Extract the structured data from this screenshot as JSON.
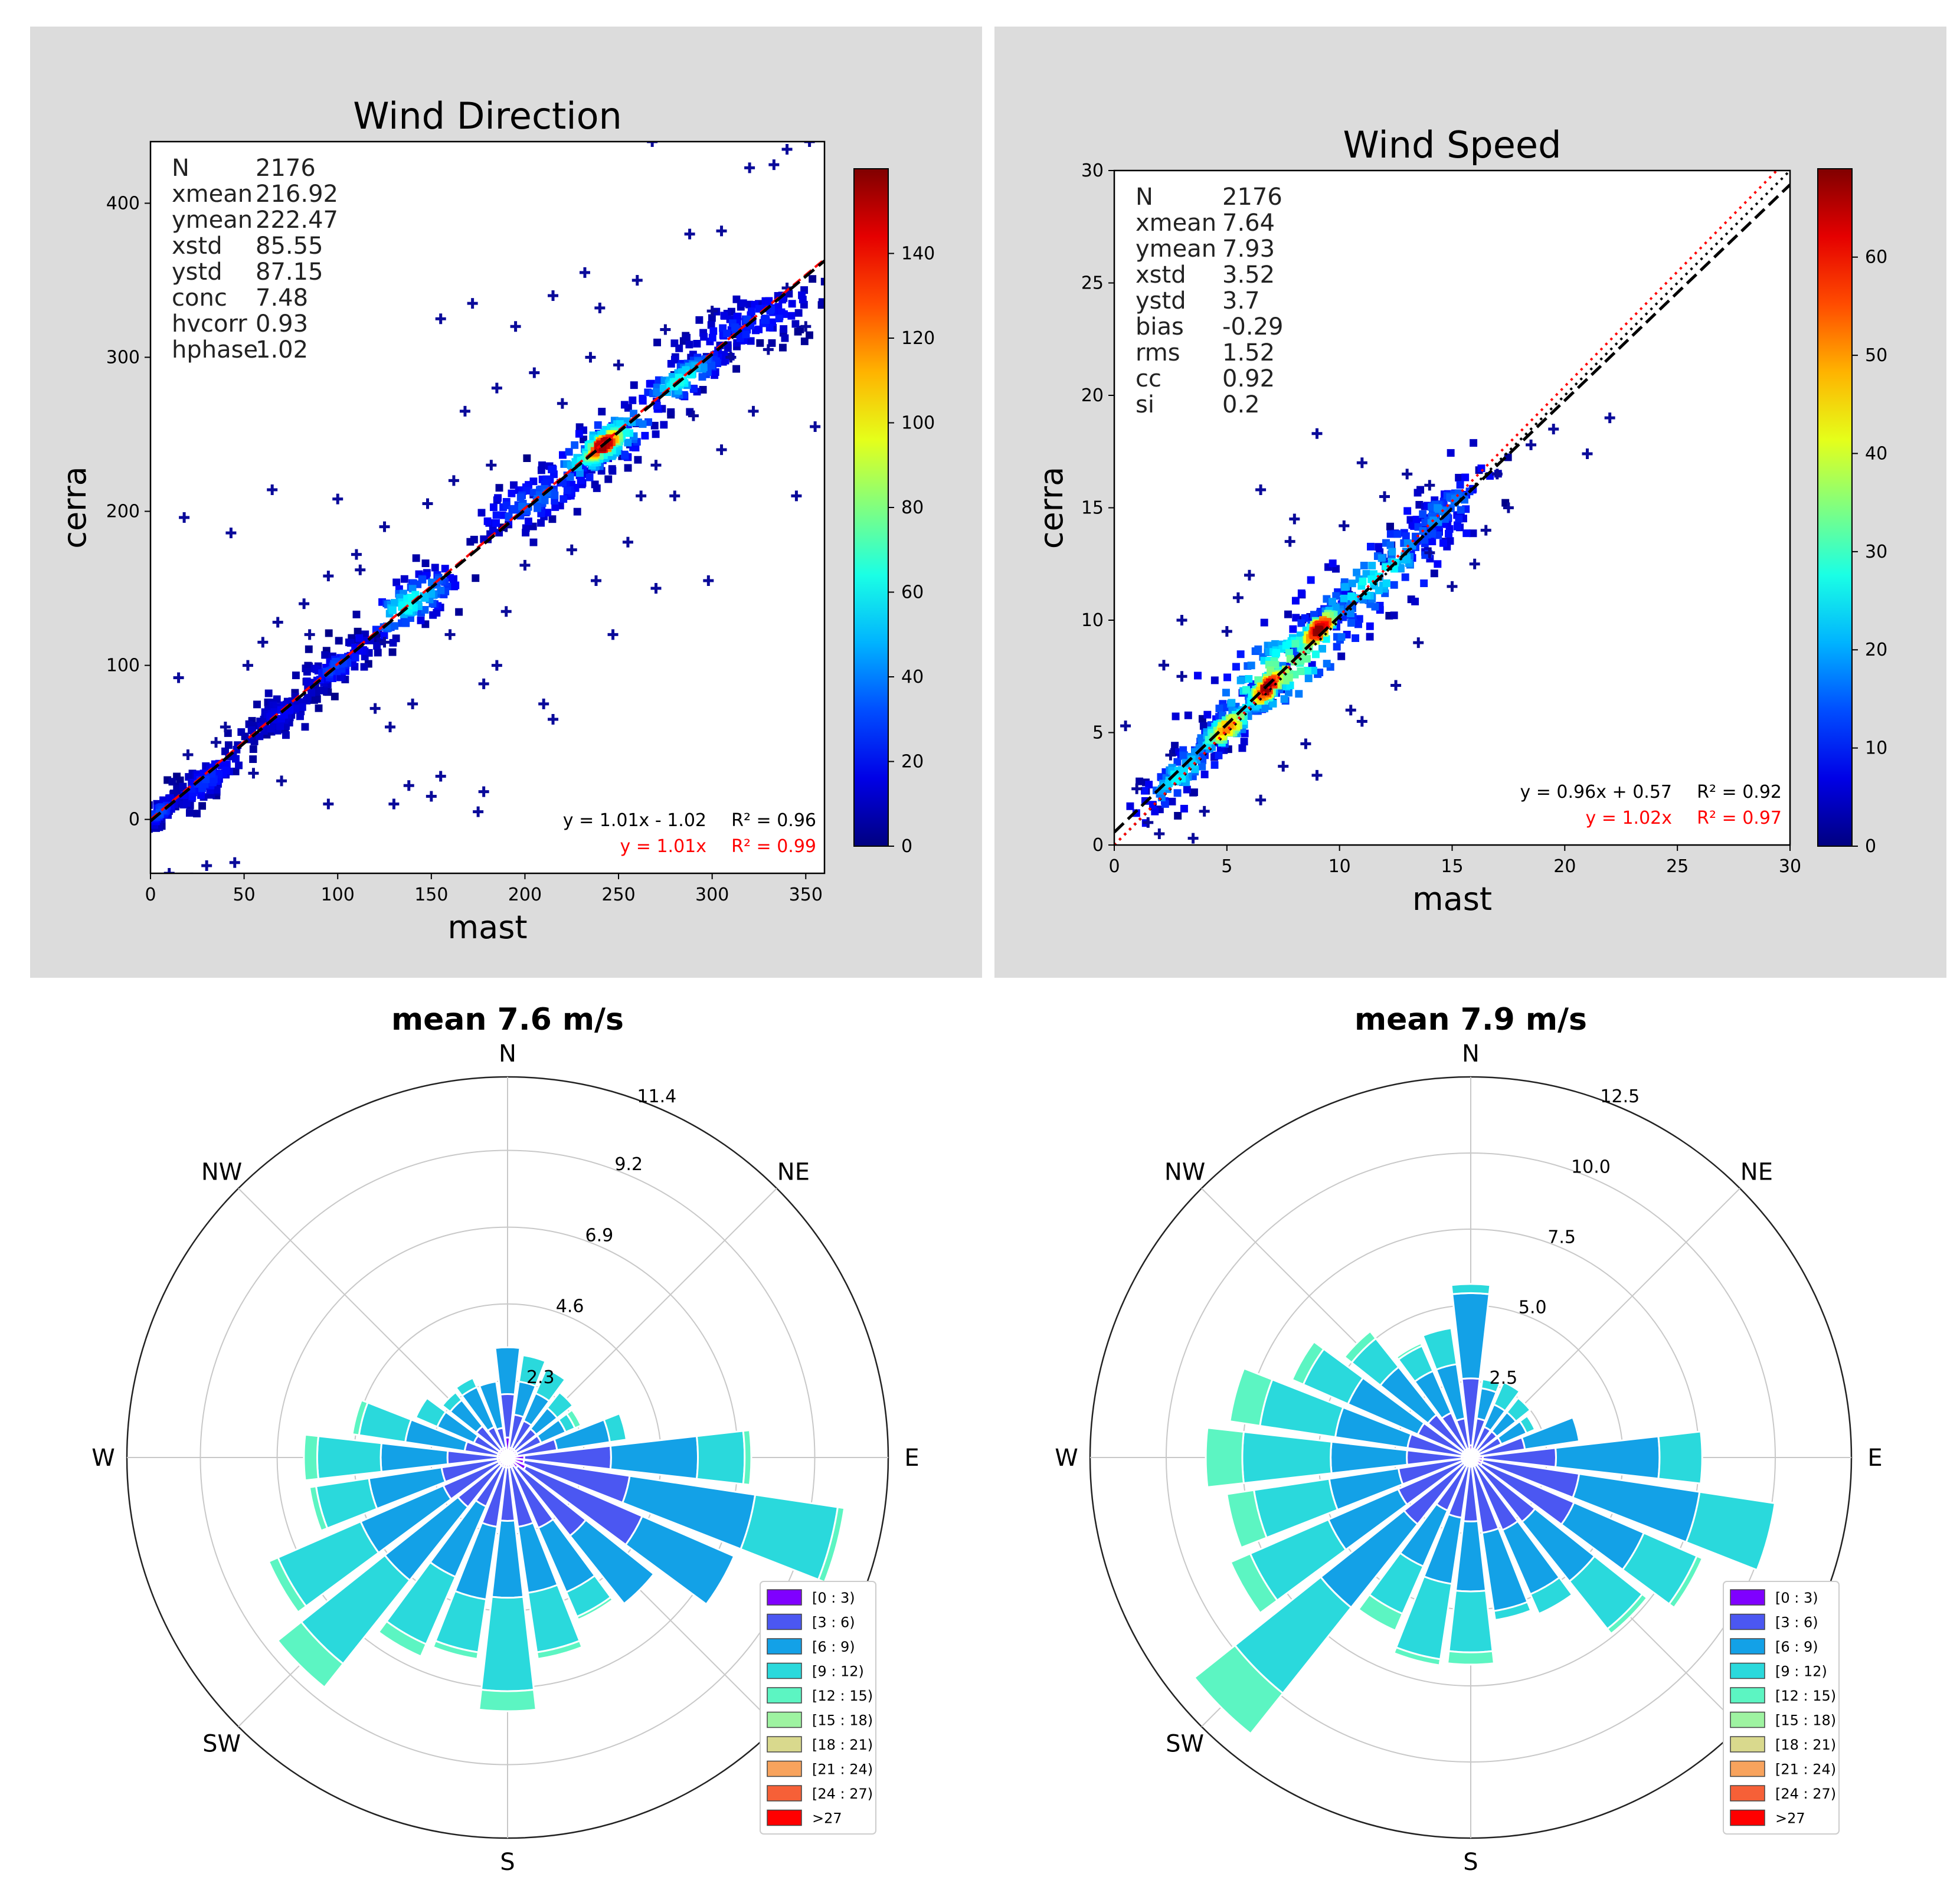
{
  "chart_data": [
    {
      "id": "scatter-direction",
      "type": "scatter",
      "title": "Wind Direction",
      "xlabel": "mast",
      "ylabel": "cerra",
      "xlim": [
        0,
        360
      ],
      "ylim": [
        -35,
        440
      ],
      "xticks": [
        0,
        50,
        100,
        150,
        200,
        250,
        300,
        350
      ],
      "yticks": [
        0,
        100,
        200,
        300,
        400
      ],
      "colorbar": {
        "min": 0,
        "max": 160,
        "ticks": [
          0,
          20,
          40,
          60,
          80,
          100,
          120,
          140
        ]
      },
      "stats": [
        {
          "label": "N",
          "value": "2176"
        },
        {
          "label": "xmean",
          "value": "216.92"
        },
        {
          "label": "ymean",
          "value": "222.47"
        },
        {
          "label": "xstd",
          "value": "85.55"
        },
        {
          "label": "ystd",
          "value": "87.15"
        },
        {
          "label": "conc",
          "value": "7.48"
        },
        {
          "label": "hvcorr",
          "value": "0.93"
        },
        {
          "label": "hphase",
          "value": "1.02"
        }
      ],
      "fit_equation": "y = 1.01x - 1.02",
      "fit_r2": "R² = 0.96",
      "origin_equation": "y = 1.01x",
      "origin_r2": "R² = 0.99",
      "fit_line": {
        "slope": 1.01,
        "intercept": -1.02
      },
      "origin_line": {
        "slope": 1.01,
        "intercept": 0
      },
      "density_clusters": [
        {
          "x": 242,
          "y": 243,
          "sx": 7,
          "sy": 7,
          "d": 155
        },
        {
          "x": 242,
          "y": 243,
          "sx": 16,
          "sy": 15,
          "d": 75
        },
        {
          "x": 283,
          "y": 285,
          "sx": 13,
          "sy": 11,
          "d": 58
        },
        {
          "x": 138,
          "y": 140,
          "sx": 15,
          "sy": 13,
          "d": 58
        },
        {
          "x": 205,
          "y": 207,
          "sx": 20,
          "sy": 14,
          "d": 30
        },
        {
          "x": 320,
          "y": 322,
          "sx": 22,
          "sy": 14,
          "d": 22
        },
        {
          "x": 100,
          "y": 100,
          "sx": 10,
          "sy": 9,
          "d": 25
        },
        {
          "x": 30,
          "y": 25,
          "sx": 10,
          "sy": 10,
          "d": 22
        },
        {
          "x": 70,
          "y": 68,
          "sx": 12,
          "sy": 10,
          "d": 12
        },
        {
          "x": 5,
          "y": 5,
          "sx": 5,
          "sy": 6,
          "d": 25
        }
      ],
      "outliers": [
        [
          18,
          196
        ],
        [
          43,
          186
        ],
        [
          65,
          214
        ],
        [
          100,
          208
        ],
        [
          95,
          158
        ],
        [
          112,
          162
        ],
        [
          70,
          25
        ],
        [
          95,
          10
        ],
        [
          138,
          22
        ],
        [
          155,
          28
        ],
        [
          178,
          18
        ],
        [
          175,
          5
        ],
        [
          150,
          15
        ],
        [
          130,
          10
        ],
        [
          45,
          -28
        ],
        [
          22,
          -38
        ],
        [
          10,
          -35
        ],
        [
          30,
          -30
        ],
        [
          172,
          335
        ],
        [
          155,
          325
        ],
        [
          195,
          320
        ],
        [
          215,
          340
        ],
        [
          232,
          355
        ],
        [
          240,
          332
        ],
        [
          260,
          350
        ],
        [
          268,
          440
        ],
        [
          288,
          380
        ],
        [
          305,
          382
        ],
        [
          320,
          423
        ],
        [
          333,
          425
        ],
        [
          340,
          435
        ],
        [
          352,
          440
        ],
        [
          355,
          255
        ],
        [
          345,
          210
        ],
        [
          322,
          265
        ],
        [
          305,
          240
        ],
        [
          238,
          155
        ],
        [
          247,
          120
        ],
        [
          270,
          150
        ],
        [
          298,
          155
        ],
        [
          210,
          75
        ],
        [
          215,
          65
        ],
        [
          185,
          100
        ],
        [
          178,
          88
        ],
        [
          190,
          135
        ],
        [
          140,
          75
        ],
        [
          120,
          72
        ],
        [
          128,
          60
        ],
        [
          225,
          175
        ],
        [
          255,
          180
        ],
        [
          262,
          210
        ],
        [
          280,
          210
        ],
        [
          220,
          270
        ],
        [
          235,
          300
        ],
        [
          250,
          295
        ],
        [
          205,
          290
        ],
        [
          185,
          280
        ],
        [
          168,
          265
        ],
        [
          182,
          230
        ],
        [
          162,
          220
        ],
        [
          148,
          205
        ],
        [
          125,
          190
        ],
        [
          110,
          172
        ],
        [
          60,
          115
        ],
        [
          52,
          100
        ],
        [
          68,
          128
        ],
        [
          82,
          140
        ],
        [
          85,
          120
        ],
        [
          40,
          60
        ],
        [
          20,
          42
        ],
        [
          15,
          92
        ],
        [
          35,
          50
        ],
        [
          55,
          30
        ],
        [
          125,
          115
        ],
        [
          160,
          120
        ],
        [
          200,
          165
        ],
        [
          190,
          190
        ],
        [
          270,
          230
        ],
        [
          290,
          262
        ],
        [
          310,
          300
        ],
        [
          330,
          305
        ],
        [
          300,
          330
        ],
        [
          275,
          318
        ],
        [
          340,
          345
        ],
        [
          350,
          320
        ]
      ]
    },
    {
      "id": "scatter-speed",
      "type": "scatter",
      "title": "Wind Speed",
      "xlabel": "mast",
      "ylabel": "cerra",
      "xlim": [
        0,
        30
      ],
      "ylim": [
        0,
        30
      ],
      "xticks": [
        0,
        5,
        10,
        15,
        20,
        25,
        30
      ],
      "yticks": [
        0,
        5,
        10,
        15,
        20,
        25,
        30
      ],
      "colorbar": {
        "min": 0,
        "max": 69,
        "ticks": [
          0,
          10,
          20,
          30,
          40,
          50,
          60
        ]
      },
      "stats": [
        {
          "label": "N",
          "value": "2176"
        },
        {
          "label": "xmean",
          "value": "7.64"
        },
        {
          "label": "ymean",
          "value": "7.93"
        },
        {
          "label": "xstd",
          "value": "3.52"
        },
        {
          "label": "ystd",
          "value": "3.7"
        },
        {
          "label": "bias",
          "value": "-0.29"
        },
        {
          "label": "rms",
          "value": "1.52"
        },
        {
          "label": "cc",
          "value": "0.92"
        },
        {
          "label": "si",
          "value": "0.2"
        }
      ],
      "fit_equation": "y = 0.96x + 0.57",
      "fit_r2": "R² = 0.92",
      "origin_equation": "y = 1.02x",
      "origin_r2": "R² = 0.97",
      "fit_line": {
        "slope": 0.96,
        "intercept": 0.57
      },
      "origin_line": {
        "slope": 1.02,
        "intercept": 0
      },
      "density_clusters": [
        {
          "x": 6.8,
          "y": 7.0,
          "sx": 0.45,
          "sy": 0.5,
          "d": 66
        },
        {
          "x": 9.1,
          "y": 9.6,
          "sx": 0.5,
          "sy": 0.55,
          "d": 62
        },
        {
          "x": 5.0,
          "y": 5.2,
          "sx": 0.7,
          "sy": 0.6,
          "d": 45
        },
        {
          "x": 7.5,
          "y": 7.8,
          "sx": 1.8,
          "sy": 1.6,
          "d": 32
        },
        {
          "x": 11.5,
          "y": 11.8,
          "sx": 1.8,
          "sy": 1.4,
          "d": 20
        },
        {
          "x": 3.0,
          "y": 3.2,
          "sx": 0.9,
          "sy": 0.9,
          "d": 20
        },
        {
          "x": 14.5,
          "y": 14.8,
          "sx": 1.2,
          "sy": 1.0,
          "d": 12
        }
      ],
      "outliers": [
        [
          9.0,
          18.3
        ],
        [
          22.0,
          19.0
        ],
        [
          21.0,
          17.4
        ],
        [
          11.0,
          17.0
        ],
        [
          14.0,
          16.0
        ],
        [
          18.5,
          17.8
        ],
        [
          17.0,
          16.5
        ],
        [
          6.5,
          15.8
        ],
        [
          12.5,
          7.1
        ],
        [
          9.0,
          3.1
        ],
        [
          7.5,
          3.5
        ],
        [
          3.5,
          0.3
        ],
        [
          2.0,
          0.5
        ],
        [
          1.0,
          2.5
        ],
        [
          0.5,
          5.3
        ],
        [
          2.2,
          8.0
        ],
        [
          3.0,
          7.5
        ],
        [
          5.5,
          11.0
        ],
        [
          6.0,
          12.0
        ],
        [
          7.8,
          13.5
        ],
        [
          10.2,
          14.2
        ],
        [
          12.0,
          15.5
        ],
        [
          13.5,
          9.0
        ],
        [
          15.0,
          11.5
        ],
        [
          16.5,
          14.0
        ],
        [
          11.0,
          5.5
        ],
        [
          4.0,
          1.5
        ],
        [
          6.5,
          2.0
        ],
        [
          8.5,
          4.5
        ],
        [
          10.5,
          6.0
        ],
        [
          14.0,
          13.0
        ],
        [
          3.0,
          10.0
        ],
        [
          2.5,
          4.0
        ],
        [
          1.5,
          1.0
        ],
        [
          5.0,
          9.5
        ],
        [
          19.5,
          18.5
        ],
        [
          17.5,
          15.0
        ],
        [
          16.0,
          12.5
        ],
        [
          13.0,
          16.5
        ],
        [
          8.0,
          14.5
        ]
      ]
    },
    {
      "id": "rose-mast",
      "type": "windrose",
      "title": "mean 7.6 m/s",
      "rmax": 11.4,
      "ring_labels": [
        "2.3",
        "4.6",
        "6.9",
        "9.2",
        "11.4"
      ],
      "ring_values": [
        2.3,
        4.6,
        6.9,
        9.2,
        11.4
      ],
      "directions": [
        "N",
        "NE",
        "E",
        "SE",
        "S",
        "SW",
        "W",
        "NW"
      ],
      "sectors": [
        [
          0.6,
          1.3,
          1.4,
          0.0,
          0.0
        ],
        [
          0.3,
          1.0,
          1.0,
          0.8,
          0.0
        ],
        [
          0.3,
          0.9,
          0.9,
          0.8,
          0.0
        ],
        [
          0.3,
          0.8,
          0.8,
          0.6,
          0.0
        ],
        [
          0.3,
          0.8,
          0.8,
          0.3,
          0.2
        ],
        [
          0.3,
          1.2,
          1.6,
          0.5,
          0.0
        ],
        [
          0.5,
          2.6,
          2.6,
          1.4,
          0.2
        ],
        [
          0.5,
          3.2,
          3.8,
          2.5,
          0.2
        ],
        [
          0.6,
          3.8,
          3.0,
          0.0,
          0.0
        ],
        [
          0.4,
          2.6,
          2.6,
          0.0,
          0.0
        ],
        [
          0.3,
          2.0,
          2.1,
          0.8,
          0.1
        ],
        [
          0.3,
          1.8,
          2.0,
          1.8,
          0.2
        ],
        [
          0.3,
          1.6,
          2.3,
          2.8,
          0.6
        ],
        [
          0.3,
          1.8,
          2.2,
          1.6,
          0.2
        ],
        [
          0.3,
          1.3,
          2.3,
          2.2,
          0.4
        ],
        [
          0.3,
          1.6,
          2.8,
          3.2,
          0.9
        ],
        [
          0.3,
          1.8,
          2.7,
          2.7,
          0.3
        ],
        [
          0.3,
          1.7,
          2.2,
          1.6,
          0.2
        ],
        [
          0.3,
          1.5,
          2.0,
          1.9,
          0.4
        ],
        [
          0.3,
          1.0,
          1.8,
          1.4,
          0.2
        ],
        [
          0.3,
          0.8,
          1.2,
          0.7,
          0.0
        ],
        [
          0.3,
          0.9,
          1.0,
          0.3,
          0.0
        ],
        [
          0.3,
          0.7,
          1.3,
          0.3,
          0.0
        ],
        [
          0.3,
          0.6,
          1.4,
          0.0,
          0.0
        ]
      ],
      "legend": [
        "[0 : 3)",
        "[3 : 6)",
        "[6 : 9)",
        "[9 : 12)",
        "[12 : 15)",
        "[15 : 18)",
        "[18 : 21)",
        "[21 : 24)",
        "[24 : 27)",
        ">27"
      ]
    },
    {
      "id": "rose-cerra",
      "type": "windrose",
      "title": "mean 7.9 m/s",
      "rmax": 12.5,
      "ring_labels": [
        "2.5",
        "5.0",
        "7.5",
        "10.0",
        "12.5"
      ],
      "ring_values": [
        2.5,
        5.0,
        7.5,
        10.0,
        12.5
      ],
      "directions": [
        "N",
        "NE",
        "E",
        "SE",
        "S",
        "SW",
        "W",
        "NW"
      ],
      "sectors": [
        [
          0.4,
          2.2,
          2.8,
          0.3,
          0.0
        ],
        [
          0.3,
          1.0,
          1.0,
          0.3,
          0.0
        ],
        [
          0.3,
          0.8,
          0.8,
          0.8,
          0.0
        ],
        [
          0.3,
          0.8,
          0.8,
          0.6,
          0.0
        ],
        [
          0.3,
          0.8,
          0.9,
          0.3,
          0.0
        ],
        [
          0.3,
          1.5,
          1.8,
          0.0,
          0.0
        ],
        [
          0.4,
          2.4,
          3.4,
          1.4,
          0.0
        ],
        [
          0.4,
          3.2,
          4.0,
          2.5,
          0.0
        ],
        [
          0.4,
          3.3,
          2.5,
          1.9,
          0.2
        ],
        [
          0.3,
          2.4,
          2.5,
          2.0,
          0.2
        ],
        [
          0.3,
          2.3,
          2.3,
          0.7,
          0.0
        ],
        [
          0.3,
          2.2,
          2.6,
          0.3,
          0.0
        ],
        [
          0.3,
          1.8,
          2.3,
          2.0,
          0.4
        ],
        [
          0.3,
          1.7,
          2.2,
          2.5,
          0.2
        ],
        [
          0.3,
          1.6,
          2.0,
          1.7,
          0.6
        ],
        [
          0.3,
          2.5,
          3.5,
          3.6,
          1.7
        ],
        [
          0.3,
          2.3,
          2.5,
          2.8,
          0.7
        ],
        [
          0.3,
          2.1,
          2.3,
          2.5,
          0.9
        ],
        [
          0.3,
          1.8,
          2.5,
          2.9,
          1.2
        ],
        [
          0.3,
          1.8,
          2.4,
          2.5,
          1.0
        ],
        [
          0.3,
          1.6,
          2.5,
          1.6,
          0.4
        ],
        [
          0.3,
          1.5,
          2.0,
          1.2,
          0.3
        ],
        [
          0.3,
          1.3,
          1.5,
          0.9,
          0.1
        ],
        [
          0.3,
          1.0,
          1.8,
          1.2,
          0.0
        ]
      ],
      "legend": [
        "[0 : 3)",
        "[3 : 6)",
        "[6 : 9)",
        "[9 : 12)",
        "[12 : 15)",
        "[15 : 18)",
        "[18 : 21)",
        "[21 : 24)",
        "[24 : 27)",
        ">27"
      ]
    }
  ],
  "colors": {
    "panel_bg": "#dcdcdc",
    "fit_line": "#000000",
    "origin_line": "#ff0000",
    "origin_text": "#ff0000",
    "ring": "#c8c8c8",
    "bins": [
      "#7f00ff",
      "#4b57f2",
      "#13a1e7",
      "#2ad9dc",
      "#5cf5c2",
      "#9ef3a1",
      "#d9d98d",
      "#f8a35d",
      "#f66037",
      "#ff0000"
    ]
  }
}
